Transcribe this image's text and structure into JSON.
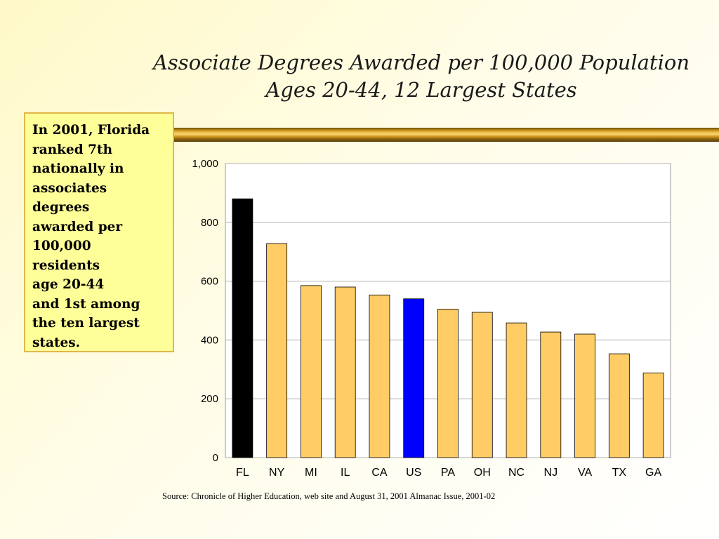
{
  "title": {
    "line1": "Associate Degrees Awarded per 100,000 Population",
    "line2": "Ages 20-44, 12 Largest States"
  },
  "note": "In 2001, Florida\nranked 7th\nnationally in\nassociates\ndegrees\nawarded per\n100,000\nresidents\nage 20-44\nand 1st among\nthe ten largest\nstates.",
  "source": "Source: Chronicle of Higher Education, web site and August 31, 2001 Almanac Issue, 2001-02",
  "colors": {
    "highlight_fl": "#000000",
    "highlight_us": "#0000ff",
    "default_bar": "#ffcc66",
    "gold_accent": "#d9a024",
    "note_background": "#ffff99"
  },
  "chart_data": {
    "type": "bar",
    "categories": [
      "FL",
      "NY",
      "MI",
      "IL",
      "CA",
      "US",
      "PA",
      "OH",
      "NC",
      "NJ",
      "VA",
      "TX",
      "GA"
    ],
    "values": [
      880,
      728,
      585,
      580,
      553,
      540,
      505,
      494,
      458,
      427,
      420,
      353,
      288
    ],
    "bar_colors": [
      "#000000",
      "#ffcc66",
      "#ffcc66",
      "#ffcc66",
      "#ffcc66",
      "#0000ff",
      "#ffcc66",
      "#ffcc66",
      "#ffcc66",
      "#ffcc66",
      "#ffcc66",
      "#ffcc66",
      "#ffcc66"
    ],
    "ylim": [
      0,
      1000
    ],
    "yticks": [
      0,
      200,
      400,
      600,
      800,
      1000
    ],
    "ytick_labels": [
      "0",
      "200",
      "400",
      "600",
      "800",
      "1,000"
    ],
    "grid": true,
    "xlabel": "",
    "ylabel": ""
  }
}
